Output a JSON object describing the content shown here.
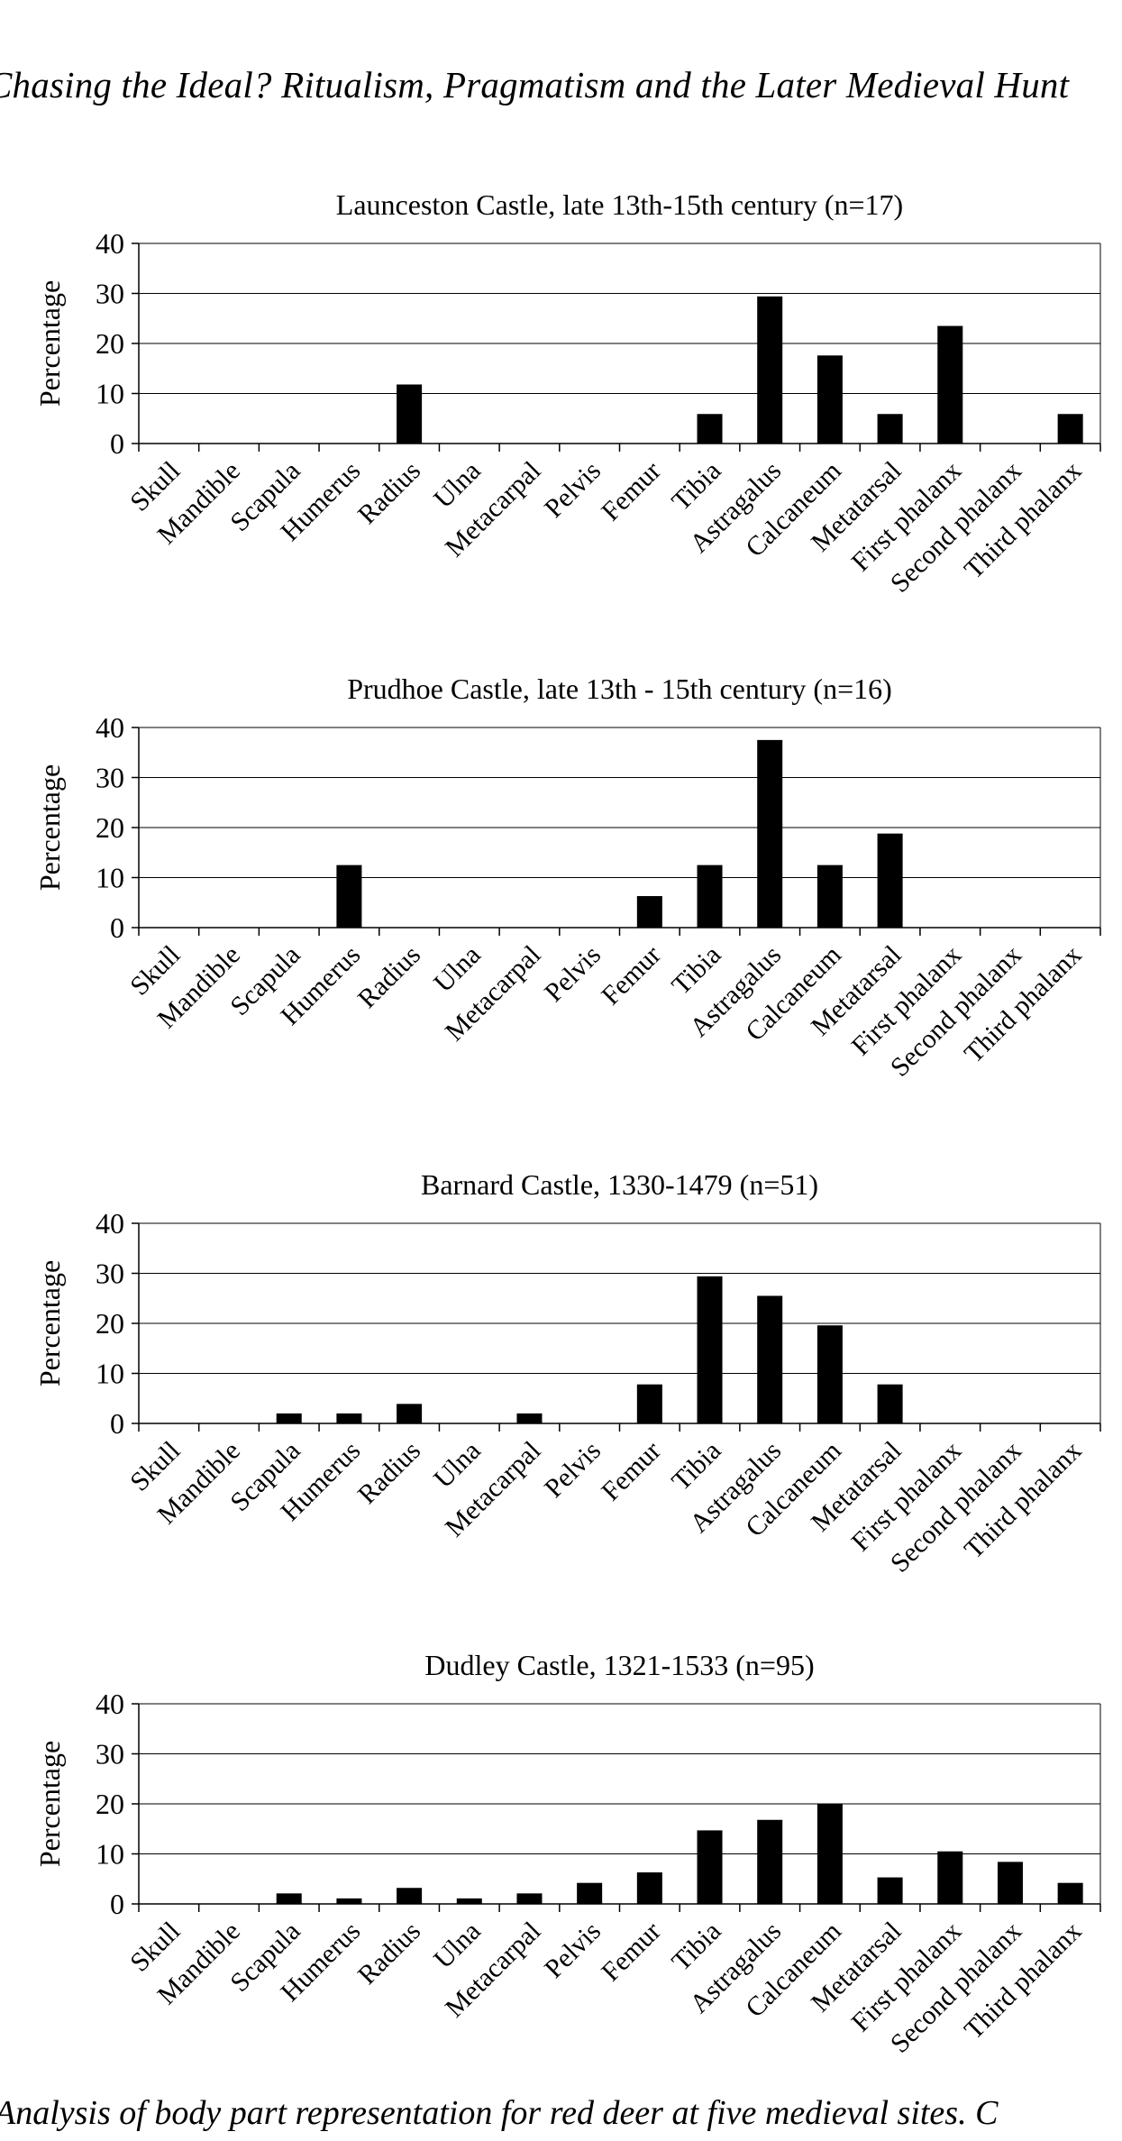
{
  "page": {
    "running_title": "Chasing the Ideal? Ritualism, Pragmatism and the Later Medieval Hunt",
    "caption": "Analysis of body part representation for red deer at five medieval sites. C"
  },
  "chart_data": [
    {
      "type": "bar",
      "title": "Launceston Castle, late 13th-15th century (n=17)",
      "xlabel": "",
      "ylabel": "Percentage",
      "ylim": [
        0,
        40
      ],
      "yticks": [
        0,
        10,
        20,
        30,
        40
      ],
      "grid": true,
      "categories": [
        "Skull",
        "Mandible",
        "Scapula",
        "Humerus",
        "Radius",
        "Ulna",
        "Metacarpal",
        "Pelvis",
        "Femur",
        "Tibia",
        "Astragalus",
        "Calcaneum",
        "Metatarsal",
        "First phalanx",
        "Second phalanx",
        "Third phalanx"
      ],
      "values": [
        0,
        0,
        0,
        0,
        11.8,
        0,
        0,
        0,
        0,
        5.9,
        29.4,
        17.6,
        5.9,
        23.5,
        0,
        5.9
      ],
      "bar_color": "#000000"
    },
    {
      "type": "bar",
      "title": "Prudhoe Castle, late 13th - 15th century (n=16)",
      "xlabel": "",
      "ylabel": "Percentage",
      "ylim": [
        0,
        40
      ],
      "yticks": [
        0,
        10,
        20,
        30,
        40
      ],
      "grid": true,
      "categories": [
        "Skull",
        "Mandible",
        "Scapula",
        "Humerus",
        "Radius",
        "Ulna",
        "Metacarpal",
        "Pelvis",
        "Femur",
        "Tibia",
        "Astragalus",
        "Calcaneum",
        "Metatarsal",
        "First phalanx",
        "Second phalanx",
        "Third phalanx"
      ],
      "values": [
        0,
        0,
        0,
        12.5,
        0,
        0,
        0,
        0,
        6.3,
        12.5,
        37.5,
        12.5,
        18.8,
        0,
        0,
        0
      ],
      "bar_color": "#000000"
    },
    {
      "type": "bar",
      "title": "Barnard Castle, 1330-1479 (n=51)",
      "xlabel": "",
      "ylabel": "Percentage",
      "ylim": [
        0,
        40
      ],
      "yticks": [
        0,
        10,
        20,
        30,
        40
      ],
      "grid": true,
      "categories": [
        "Skull",
        "Mandible",
        "Scapula",
        "Humerus",
        "Radius",
        "Ulna",
        "Metacarpal",
        "Pelvis",
        "Femur",
        "Tibia",
        "Astragalus",
        "Calcaneum",
        "Metatarsal",
        "First phalanx",
        "Second phalanx",
        "Third phalanx"
      ],
      "values": [
        0,
        0,
        2,
        2,
        3.9,
        0,
        2,
        0,
        7.8,
        29.4,
        25.5,
        19.6,
        7.8,
        0,
        0,
        0
      ],
      "bar_color": "#000000"
    },
    {
      "type": "bar",
      "title": "Dudley Castle, 1321-1533 (n=95)",
      "xlabel": "",
      "ylabel": "Percentage",
      "ylim": [
        0,
        40
      ],
      "yticks": [
        0,
        10,
        20,
        30,
        40
      ],
      "grid": true,
      "categories": [
        "Skull",
        "Mandible",
        "Scapula",
        "Humerus",
        "Radius",
        "Ulna",
        "Metacarpal",
        "Pelvis",
        "Femur",
        "Tibia",
        "Astragalus",
        "Calcaneum",
        "Metatarsal",
        "First phalanx",
        "Second phalanx",
        "Third phalanx"
      ],
      "values": [
        0,
        0,
        2.1,
        1.1,
        3.2,
        1.1,
        2.1,
        4.2,
        6.3,
        14.7,
        16.8,
        20,
        5.3,
        10.5,
        8.4,
        4.2
      ],
      "bar_color": "#000000"
    }
  ]
}
